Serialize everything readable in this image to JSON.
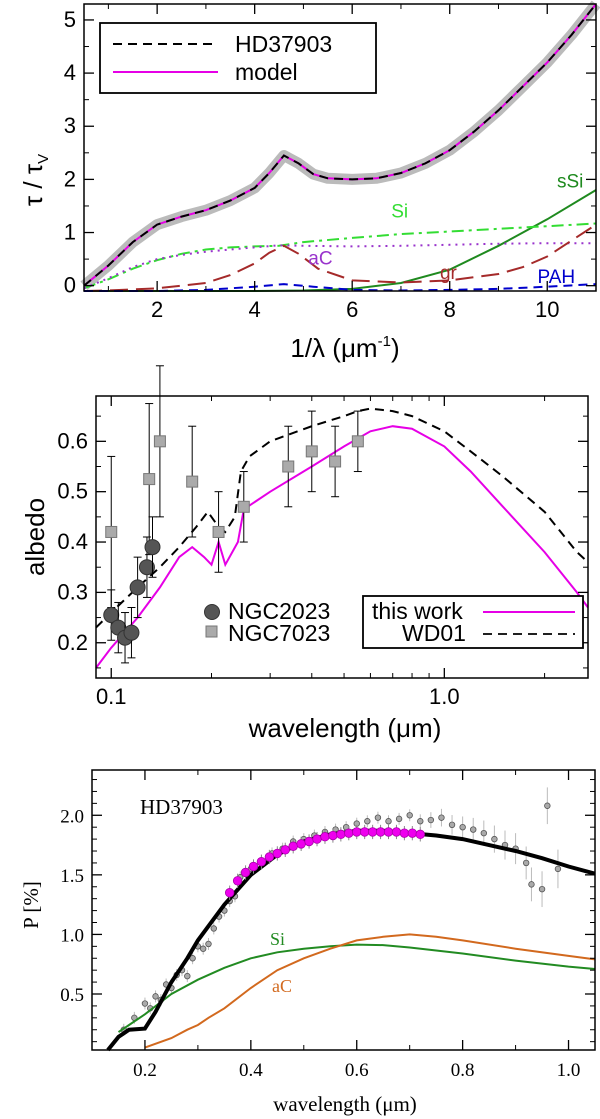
{
  "chart_data": [
    {
      "type": "line",
      "xlabel": "1/λ (μm",
      "xlabel_sup": "-1",
      "xlabel_end": ")",
      "ylabel": "τ / τ",
      "ylabel_sub": "V",
      "xlim": [
        0.5,
        11
      ],
      "ylim": [
        -0.1,
        5.3
      ],
      "x_ticks": [
        2,
        4,
        6,
        8,
        10
      ],
      "y_ticks": [
        0,
        1,
        2,
        3,
        4,
        5
      ],
      "legend": {
        "position": "top-left",
        "entries": [
          "HD37903",
          "model"
        ]
      },
      "series": [
        {
          "name": "HD37903",
          "style": "dashed",
          "color": "#000000",
          "band_color": "#bbbbbb",
          "x": [
            0.5,
            1.0,
            1.5,
            2.0,
            2.5,
            3.0,
            3.5,
            4.0,
            4.3,
            4.6,
            4.9,
            5.2,
            5.5,
            6.0,
            6.5,
            7.0,
            7.5,
            8.0,
            8.5,
            9.0,
            9.5,
            10.0,
            10.5,
            11.0
          ],
          "values": [
            0.0,
            0.38,
            0.82,
            1.15,
            1.3,
            1.42,
            1.6,
            1.84,
            2.12,
            2.45,
            2.3,
            2.1,
            2.02,
            2.0,
            2.02,
            2.12,
            2.3,
            2.55,
            2.9,
            3.3,
            3.75,
            4.2,
            4.72,
            5.3
          ]
        },
        {
          "name": "model",
          "style": "solid",
          "color": "#e600e6",
          "x": [
            0.5,
            1.0,
            1.5,
            2.0,
            2.5,
            3.0,
            3.5,
            4.0,
            4.3,
            4.6,
            4.9,
            5.2,
            5.5,
            6.0,
            6.5,
            7.0,
            7.5,
            8.0,
            8.5,
            9.0,
            9.5,
            10.0,
            10.5,
            11.0
          ],
          "values": [
            0.0,
            0.38,
            0.82,
            1.15,
            1.3,
            1.42,
            1.6,
            1.84,
            2.12,
            2.45,
            2.3,
            2.1,
            2.02,
            2.0,
            2.02,
            2.12,
            2.3,
            2.55,
            2.9,
            3.3,
            3.75,
            4.2,
            4.72,
            5.3
          ]
        },
        {
          "name": "sSi",
          "style": "solid",
          "color": "#1f8a1f",
          "x": [
            0.5,
            2,
            3,
            4,
            5,
            6,
            7,
            8,
            9,
            10,
            11
          ],
          "values": [
            -0.1,
            -0.1,
            -0.1,
            -0.1,
            -0.09,
            -0.06,
            0.05,
            0.3,
            0.75,
            1.25,
            1.8
          ]
        },
        {
          "name": "Si",
          "style": "dashdot",
          "color": "#33dd33",
          "x": [
            0.5,
            1,
            1.5,
            2,
            2.5,
            3,
            3.5,
            4,
            4.5,
            5,
            6,
            7,
            8,
            9,
            10,
            11
          ],
          "values": [
            -0.05,
            0.12,
            0.32,
            0.48,
            0.6,
            0.68,
            0.72,
            0.74,
            0.75,
            0.82,
            0.9,
            0.97,
            1.02,
            1.07,
            1.12,
            1.17
          ]
        },
        {
          "name": "aC",
          "style": "dotted",
          "color": "#9933cc",
          "x": [
            0.5,
            1,
            1.5,
            2,
            2.5,
            3,
            3.5,
            4,
            4.5,
            5,
            6,
            7,
            8,
            9,
            10,
            11
          ],
          "values": [
            -0.05,
            0.14,
            0.35,
            0.5,
            0.58,
            0.64,
            0.68,
            0.72,
            0.76,
            0.75,
            0.74,
            0.75,
            0.77,
            0.79,
            0.8,
            0.8
          ]
        },
        {
          "name": "gr",
          "style": "longdash",
          "color": "#a52a2a",
          "x": [
            0.5,
            1,
            2,
            3,
            3.5,
            4,
            4.3,
            4.6,
            4.9,
            5.3,
            6,
            7,
            8,
            9,
            9.5,
            10,
            10.5,
            11
          ],
          "values": [
            -0.1,
            -0.09,
            -0.05,
            0.05,
            0.2,
            0.42,
            0.62,
            0.75,
            0.6,
            0.32,
            0.1,
            0.06,
            0.1,
            0.22,
            0.35,
            0.55,
            0.85,
            1.15
          ]
        },
        {
          "name": "PAH",
          "style": "dashed",
          "color": "#0000cc",
          "x": [
            0.5,
            2,
            3,
            4,
            4.6,
            5.2,
            6,
            7,
            8,
            9,
            10,
            11
          ],
          "values": [
            -0.1,
            -0.1,
            -0.08,
            -0.02,
            0.03,
            -0.02,
            -0.08,
            -0.09,
            -0.08,
            -0.06,
            -0.02,
            0.03
          ]
        }
      ],
      "annotations": [
        {
          "text": "sSi",
          "color": "#1f8a1f",
          "x": 10.2,
          "y": 1.85
        },
        {
          "text": "Si",
          "color": "#33dd33",
          "x": 6.8,
          "y": 1.28
        },
        {
          "text": "aC",
          "color": "#9933cc",
          "x": 5.1,
          "y": 0.4
        },
        {
          "text": "gr",
          "color": "#a52a2a",
          "x": 7.8,
          "y": 0.13
        },
        {
          "text": "PAH",
          "color": "#0000cc",
          "x": 9.8,
          "y": 0.05
        }
      ]
    },
    {
      "type": "line",
      "xlabel": "wavelength (μm)",
      "ylabel": "albedo",
      "x_scale": "log",
      "xlim": [
        0.09,
        2.7
      ],
      "ylim": [
        0.13,
        0.69
      ],
      "x_ticks": [
        0.1,
        1.0
      ],
      "x_tick_labels": [
        "0.1",
        "1.0"
      ],
      "y_ticks": [
        0.2,
        0.3,
        0.4,
        0.5,
        0.6
      ],
      "legend": {
        "position": "bottom-right",
        "entries": [
          "this work",
          "WD01"
        ]
      },
      "series": [
        {
          "name": "this work",
          "style": "solid",
          "color": "#e600e6",
          "x": [
            0.09,
            0.1,
            0.12,
            0.14,
            0.16,
            0.175,
            0.19,
            0.2,
            0.21,
            0.22,
            0.24,
            0.25,
            0.3,
            0.4,
            0.5,
            0.6,
            0.7,
            0.8,
            1.0,
            1.2,
            1.5,
            2.0,
            2.5,
            2.7
          ],
          "values": [
            0.15,
            0.19,
            0.25,
            0.31,
            0.37,
            0.39,
            0.37,
            0.355,
            0.4,
            0.355,
            0.4,
            0.465,
            0.5,
            0.55,
            0.59,
            0.62,
            0.63,
            0.625,
            0.59,
            0.54,
            0.47,
            0.38,
            0.3,
            0.27
          ]
        },
        {
          "name": "WD01",
          "style": "dashed",
          "color": "#000000",
          "x": [
            0.09,
            0.1,
            0.12,
            0.14,
            0.16,
            0.18,
            0.195,
            0.21,
            0.22,
            0.235,
            0.245,
            0.26,
            0.3,
            0.4,
            0.5,
            0.55,
            0.6,
            0.7,
            0.8,
            1.0,
            1.2,
            1.5,
            2.0,
            2.5,
            2.7
          ],
          "values": [
            0.23,
            0.26,
            0.31,
            0.35,
            0.39,
            0.43,
            0.46,
            0.43,
            0.42,
            0.45,
            0.54,
            0.57,
            0.6,
            0.63,
            0.65,
            0.66,
            0.665,
            0.66,
            0.65,
            0.62,
            0.58,
            0.53,
            0.46,
            0.38,
            0.36
          ]
        },
        {
          "name": "NGC2023",
          "style": "points",
          "marker": "circle",
          "color": "#555555",
          "x": [
            0.1,
            0.105,
            0.11,
            0.115,
            0.12,
            0.128,
            0.133
          ],
          "values": [
            0.255,
            0.23,
            0.21,
            0.22,
            0.31,
            0.35,
            0.39
          ],
          "errors": [
            0.05,
            0.05,
            0.05,
            0.05,
            0.06,
            0.06,
            0.06
          ]
        },
        {
          "name": "NGC7023",
          "style": "points",
          "marker": "square",
          "color": "#aaaaaa",
          "x": [
            0.1,
            0.13,
            0.14,
            0.175,
            0.21,
            0.25,
            0.34,
            0.4,
            0.47,
            0.55
          ],
          "values": [
            0.42,
            0.525,
            0.6,
            0.52,
            0.42,
            0.47,
            0.55,
            0.58,
            0.56,
            0.6
          ],
          "errors": [
            0.15,
            0.15,
            0.15,
            0.11,
            0.08,
            0.07,
            0.08,
            0.08,
            0.07,
            0.06
          ]
        }
      ]
    },
    {
      "type": "scatter",
      "title": "HD37903",
      "xlabel": "wavelength (μm)",
      "ylabel": "P [%]",
      "xlim": [
        0.1,
        1.05
      ],
      "ylim": [
        0.03,
        2.38
      ],
      "x_ticks": [
        0.2,
        0.4,
        0.6,
        0.8,
        1.0
      ],
      "x_tick_labels": [
        "0.2",
        "0.4",
        "0.6",
        "0.8",
        "1.0"
      ],
      "y_ticks": [
        0.5,
        1.0,
        1.5,
        2.0
      ],
      "y_tick_labels": [
        "0.5",
        "1.0",
        "1.5",
        "2.0"
      ],
      "series": [
        {
          "name": "model total",
          "style": "solid-thick",
          "color": "#000000",
          "x": [
            0.13,
            0.15,
            0.17,
            0.2,
            0.22,
            0.25,
            0.28,
            0.3,
            0.32,
            0.35,
            0.4,
            0.45,
            0.5,
            0.55,
            0.6,
            0.65,
            0.7,
            0.75,
            0.8,
            0.85,
            0.9,
            0.95,
            1.0,
            1.05
          ],
          "values": [
            0.03,
            0.14,
            0.2,
            0.21,
            0.35,
            0.6,
            0.8,
            0.95,
            1.07,
            1.25,
            1.5,
            1.67,
            1.78,
            1.84,
            1.87,
            1.87,
            1.85,
            1.83,
            1.8,
            1.75,
            1.7,
            1.64,
            1.57,
            1.51
          ]
        },
        {
          "name": "Si",
          "style": "solid",
          "color": "#228b22",
          "x": [
            0.15,
            0.2,
            0.25,
            0.3,
            0.35,
            0.4,
            0.45,
            0.5,
            0.55,
            0.6,
            0.65,
            0.7,
            0.8,
            0.9,
            1.0,
            1.05
          ],
          "values": [
            0.18,
            0.33,
            0.5,
            0.62,
            0.72,
            0.8,
            0.85,
            0.88,
            0.9,
            0.915,
            0.91,
            0.89,
            0.84,
            0.78,
            0.73,
            0.71
          ]
        },
        {
          "name": "aC",
          "style": "solid",
          "color": "#d2691e",
          "x": [
            0.2,
            0.25,
            0.28,
            0.3,
            0.32,
            0.35,
            0.4,
            0.45,
            0.5,
            0.55,
            0.6,
            0.65,
            0.7,
            0.75,
            0.8,
            0.9,
            1.0,
            1.05
          ],
          "values": [
            0.05,
            0.13,
            0.2,
            0.24,
            0.3,
            0.38,
            0.55,
            0.7,
            0.8,
            0.88,
            0.95,
            0.98,
            1.0,
            0.98,
            0.95,
            0.88,
            0.82,
            0.79
          ]
        },
        {
          "name": "magenta data",
          "style": "points",
          "marker": "circle",
          "color": "#ee00ee",
          "x": [
            0.36,
            0.375,
            0.39,
            0.405,
            0.42,
            0.435,
            0.45,
            0.465,
            0.48,
            0.495,
            0.51,
            0.525,
            0.54,
            0.555,
            0.57,
            0.585,
            0.6,
            0.615,
            0.63,
            0.645,
            0.66,
            0.675,
            0.69,
            0.705,
            0.72
          ],
          "values": [
            1.35,
            1.45,
            1.52,
            1.57,
            1.61,
            1.65,
            1.68,
            1.71,
            1.74,
            1.76,
            1.78,
            1.8,
            1.82,
            1.83,
            1.84,
            1.85,
            1.86,
            1.86,
            1.86,
            1.86,
            1.86,
            1.86,
            1.85,
            1.85,
            1.84
          ]
        },
        {
          "name": "grey data",
          "style": "points",
          "marker": "circle",
          "color": "#aaaaaa",
          "x": [
            0.16,
            0.18,
            0.2,
            0.21,
            0.22,
            0.23,
            0.24,
            0.25,
            0.26,
            0.27,
            0.28,
            0.29,
            0.3,
            0.31,
            0.32,
            0.33,
            0.34,
            0.35,
            0.36,
            0.37,
            0.38,
            0.4,
            0.42,
            0.44,
            0.46,
            0.48,
            0.5,
            0.52,
            0.54,
            0.56,
            0.58,
            0.6,
            0.62,
            0.64,
            0.66,
            0.68,
            0.7,
            0.72,
            0.74,
            0.76,
            0.78,
            0.8,
            0.82,
            0.84,
            0.86,
            0.88,
            0.9,
            0.92,
            0.93,
            0.95,
            0.96,
            0.98
          ],
          "values": [
            0.2,
            0.3,
            0.42,
            0.38,
            0.48,
            0.45,
            0.58,
            0.55,
            0.66,
            0.7,
            0.65,
            0.8,
            0.9,
            0.88,
            0.92,
            1.05,
            1.15,
            1.2,
            1.28,
            1.32,
            1.48,
            1.55,
            1.62,
            1.68,
            1.72,
            1.78,
            1.8,
            1.83,
            1.86,
            1.88,
            1.9,
            1.93,
            1.95,
            1.98,
            1.95,
            1.97,
            2.0,
            1.95,
            1.96,
            1.98,
            1.92,
            1.9,
            1.88,
            1.85,
            1.8,
            1.75,
            1.72,
            1.6,
            1.42,
            1.38,
            2.08,
            1.55
          ]
        }
      ]
    }
  ]
}
